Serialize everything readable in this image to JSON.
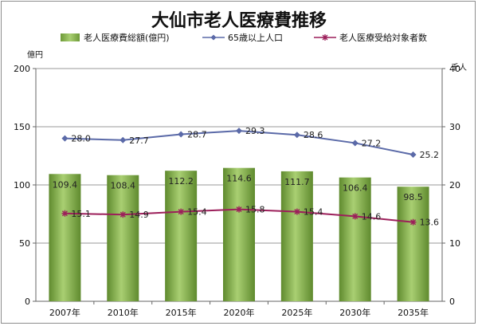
{
  "chart_data": {
    "type": "bar+line",
    "title": "大仙市老人医療費推移",
    "categories": [
      "2007年",
      "2010年",
      "2015年",
      "2020年",
      "2025年",
      "2030年",
      "2035年"
    ],
    "bar_series": {
      "name": "老人医療費総額(億円)",
      "axis": "left",
      "values": [
        109.4,
        108.4,
        112.2,
        114.6,
        111.7,
        106.4,
        98.5
      ],
      "color": "#7aa644"
    },
    "line_series": [
      {
        "name": "65歳以上人口",
        "axis": "right",
        "values": [
          28.0,
          27.7,
          28.7,
          29.3,
          28.6,
          27.2,
          25.2
        ],
        "labels": [
          "28.0",
          "27.7",
          "28.7",
          "29.3",
          "28.6",
          "27.2",
          "25.2"
        ],
        "color": "#5b6aa8",
        "marker": "diamond"
      },
      {
        "name": "老人医療受給対象者数",
        "axis": "right",
        "values": [
          15.1,
          14.9,
          15.4,
          15.8,
          15.4,
          14.6,
          13.6
        ],
        "labels": [
          "15.1",
          "14.9",
          "15.4",
          "15.8",
          "15.4",
          "14.6",
          "13.6"
        ],
        "color": "#9c1f5a",
        "marker": "star"
      }
    ],
    "left_axis": {
      "unit": "億円",
      "min": 0,
      "max": 200,
      "ticks": [
        0,
        50,
        100,
        150,
        200
      ]
    },
    "right_axis": {
      "unit": "千人",
      "min": 0,
      "max": 40,
      "ticks": [
        0,
        10,
        20,
        30,
        40
      ]
    },
    "grid": true,
    "legend_position": "top"
  }
}
